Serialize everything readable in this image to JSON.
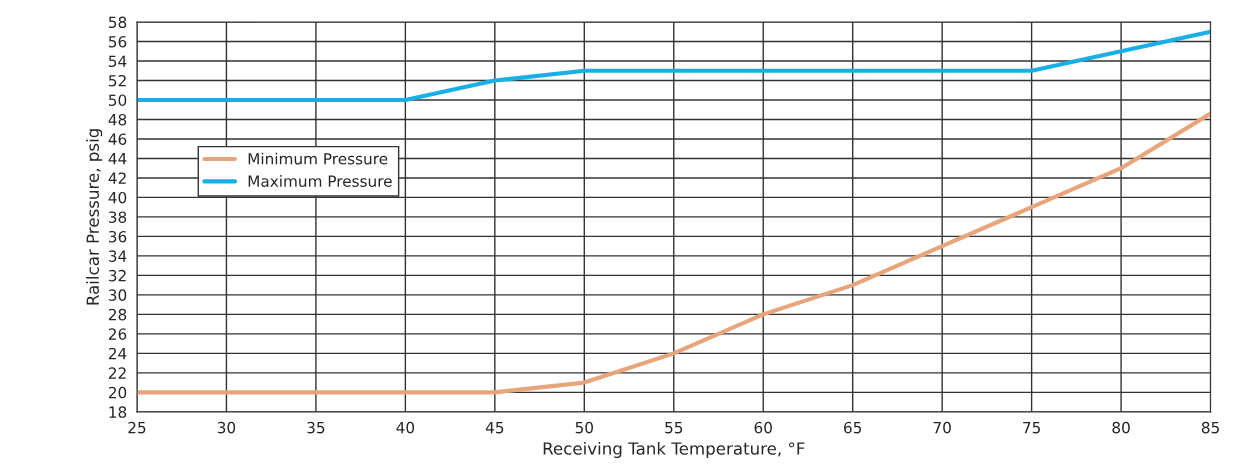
{
  "chart_data": {
    "type": "line",
    "xlabel": "Receiving Tank Temperature, °F",
    "ylabel": "Railcar Pressure, psig",
    "x": [
      25,
      30,
      35,
      40,
      45,
      50,
      55,
      60,
      65,
      70,
      75,
      80,
      85
    ],
    "series": [
      {
        "name": "Minimum Pressure",
        "color": "#e8a47a",
        "values": [
          20,
          20,
          20,
          20,
          20,
          21,
          24,
          28,
          31,
          35,
          39,
          43,
          48.6
        ]
      },
      {
        "name": "Maximum Pressure",
        "color": "#1aaee6",
        "values": [
          50,
          50,
          50,
          50,
          52,
          53,
          53,
          53,
          53,
          53,
          53,
          55,
          57
        ]
      }
    ],
    "xlim": [
      25,
      85
    ],
    "xticks": [
      25,
      30,
      35,
      40,
      45,
      50,
      55,
      60,
      65,
      70,
      75,
      80,
      85
    ],
    "ylim": [
      18,
      58
    ],
    "yticks": [
      18,
      20,
      22,
      24,
      26,
      28,
      30,
      32,
      34,
      36,
      38,
      40,
      42,
      44,
      46,
      48,
      50,
      52,
      54,
      56,
      58
    ],
    "grid": true,
    "legend": "upper left",
    "marker": "none",
    "line_style": "solid"
  }
}
